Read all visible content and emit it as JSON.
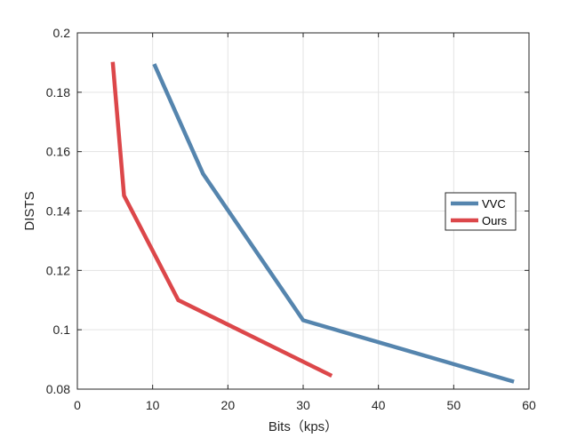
{
  "chart_data": {
    "type": "line",
    "title": "",
    "xlabel": "Bits（kps）",
    "ylabel": "DISTS",
    "xlim": [
      0,
      60
    ],
    "ylim": [
      0.08,
      0.2
    ],
    "xticks": [
      0,
      10,
      20,
      30,
      40,
      50,
      60
    ],
    "yticks": [
      0.08,
      0.1,
      0.12,
      0.14,
      0.16,
      0.18,
      0.2
    ],
    "xtick_labels": [
      "0",
      "10",
      "20",
      "30",
      "40",
      "50",
      "60"
    ],
    "ytick_labels": [
      "0.08",
      "0.1",
      "0.12",
      "0.14",
      "0.16",
      "0.18",
      "0.2"
    ],
    "grid": true,
    "legend_position": "right",
    "series": [
      {
        "name": "VVC",
        "color": "#5585AE",
        "x": [
          10.2,
          16.7,
          30.0,
          58.0
        ],
        "y": [
          0.1895,
          0.1525,
          0.1032,
          0.0825
        ]
      },
      {
        "name": "Ours",
        "color": "#DC474A",
        "x": [
          4.7,
          6.2,
          13.4,
          33.8
        ],
        "y": [
          0.1902,
          0.1452,
          0.11,
          0.0845
        ]
      }
    ]
  }
}
